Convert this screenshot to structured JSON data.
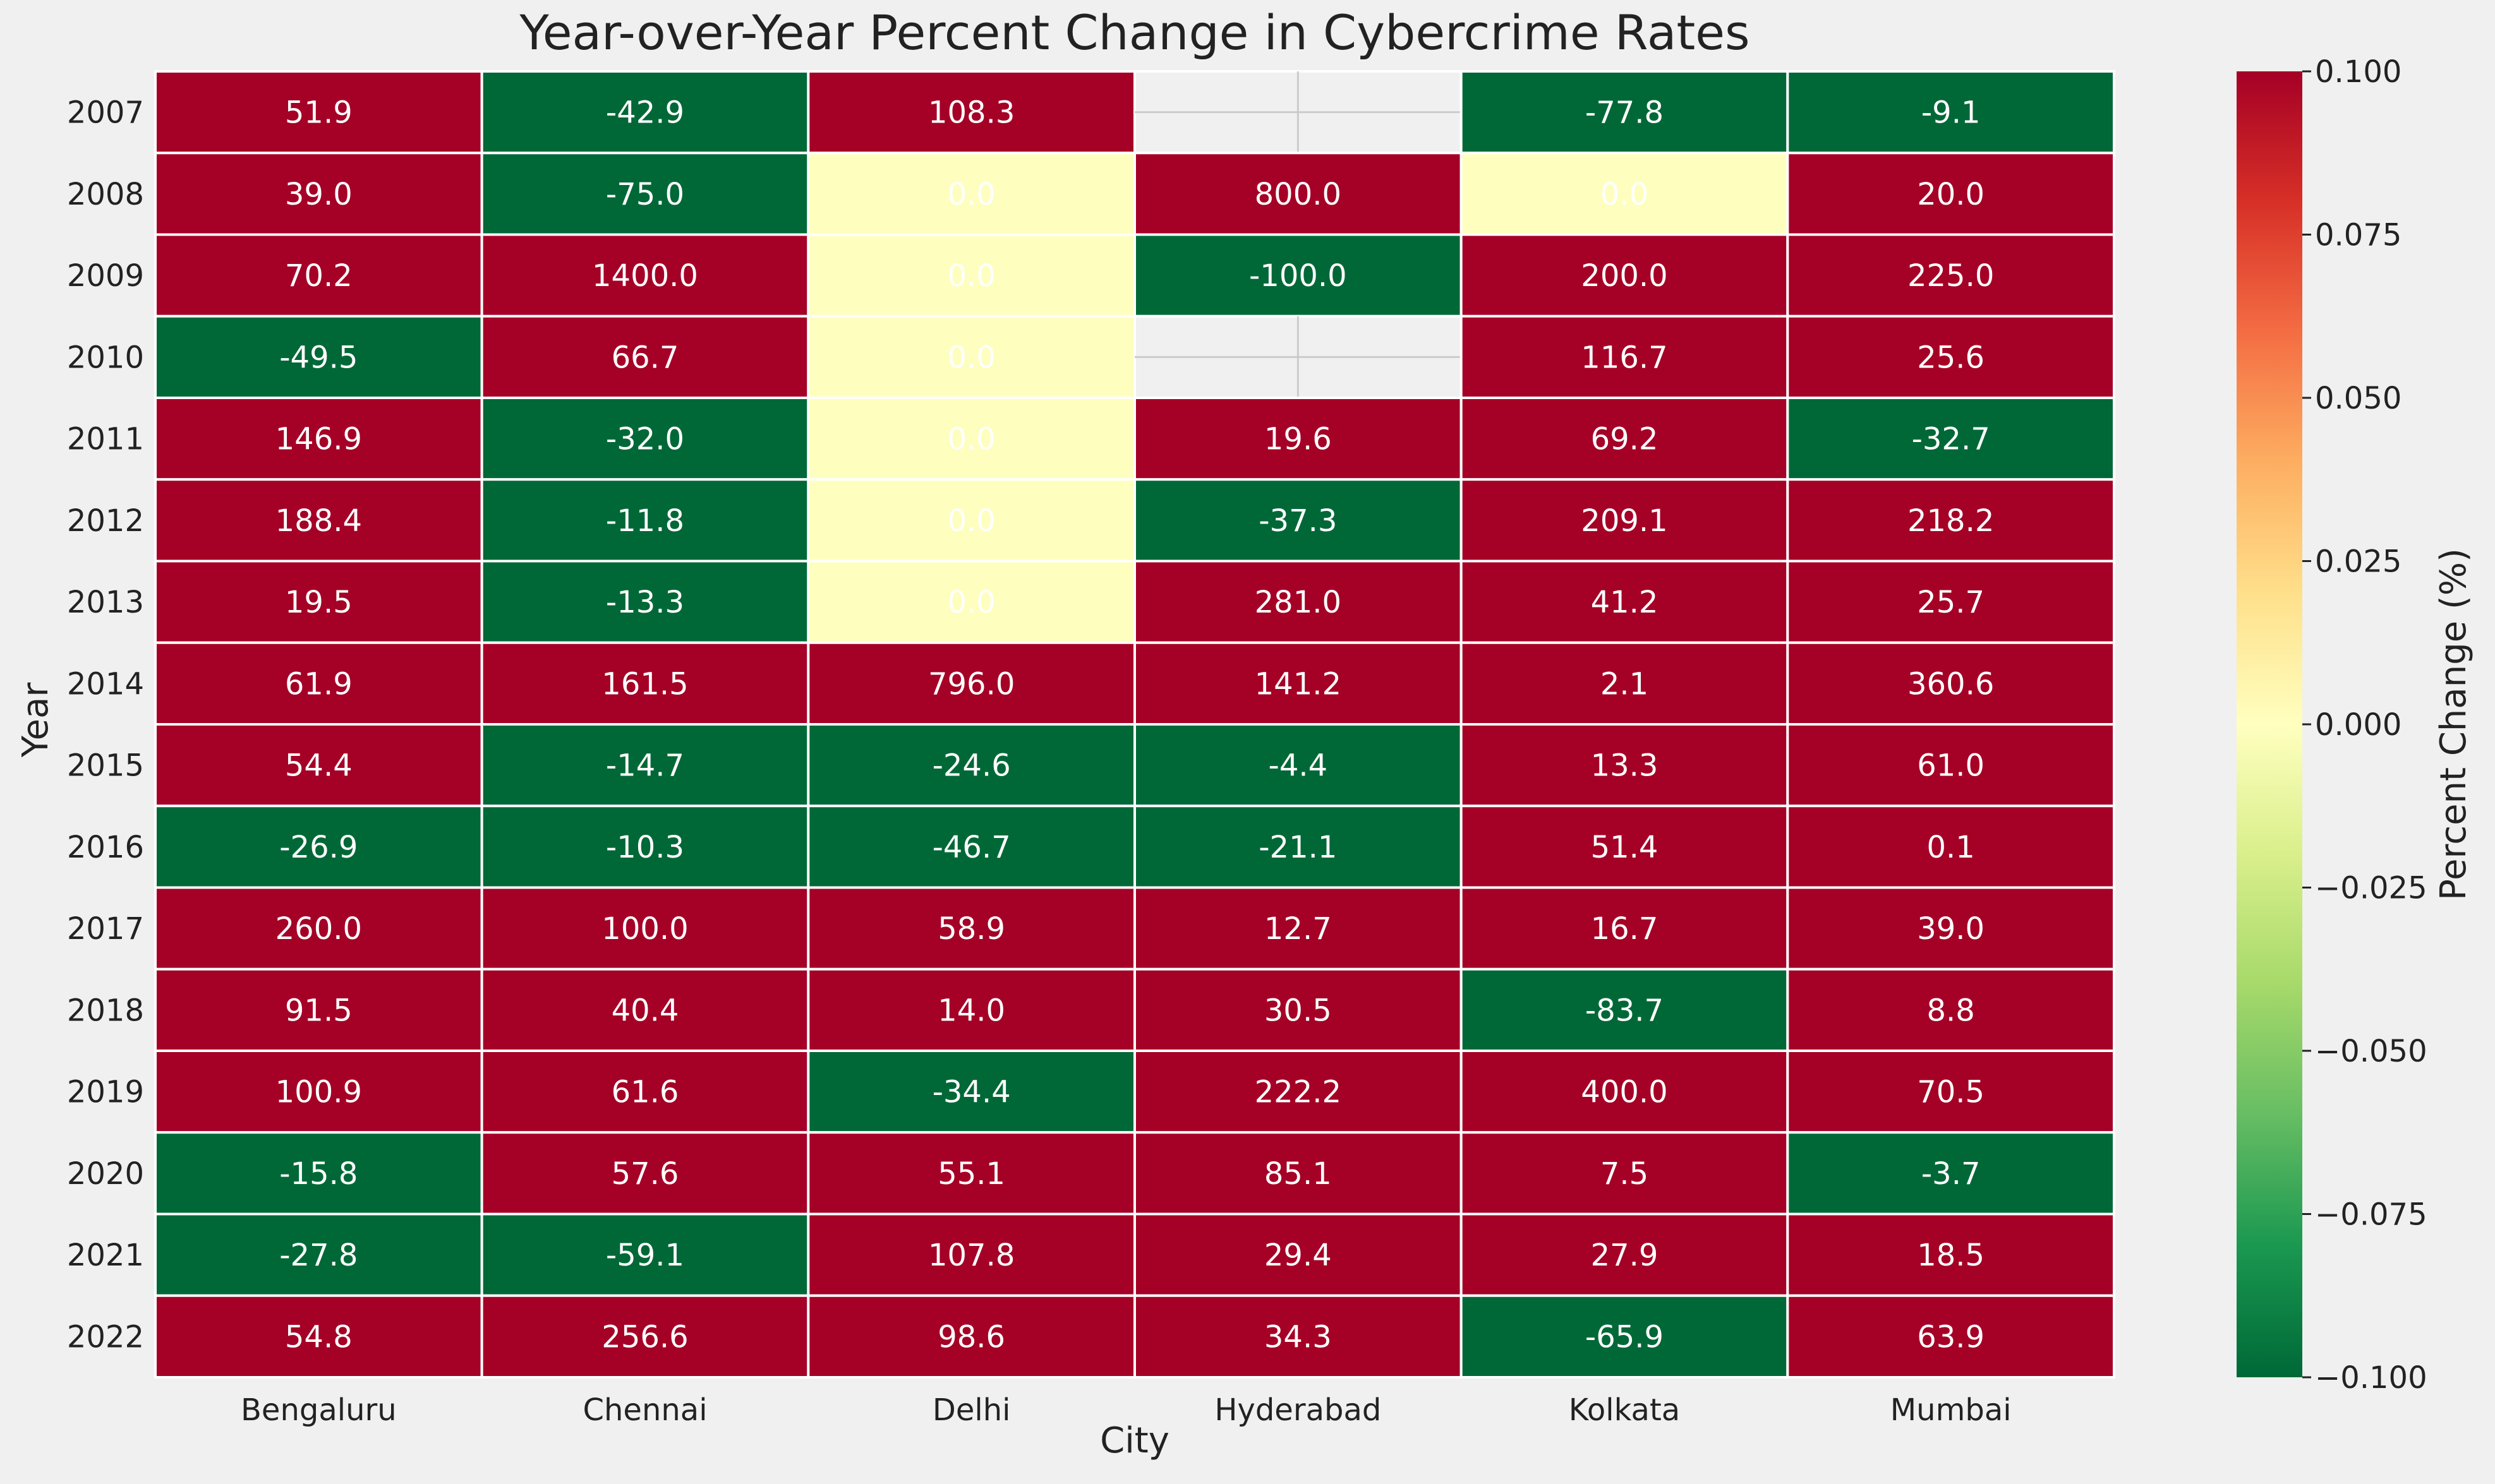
{
  "chart_data": {
    "type": "heatmap",
    "title": "Year-over-Year Percent Change in Cybercrime Rates",
    "xlabel": "City",
    "ylabel": "Year",
    "x_categories": [
      "Bengaluru",
      "Chennai",
      "Delhi",
      "Hyderabad",
      "Kolkata",
      "Mumbai"
    ],
    "y_categories": [
      "2007",
      "2008",
      "2009",
      "2010",
      "2011",
      "2012",
      "2013",
      "2014",
      "2015",
      "2016",
      "2017",
      "2018",
      "2019",
      "2020",
      "2021",
      "2022"
    ],
    "values": [
      [
        51.9,
        -42.9,
        108.3,
        null,
        -77.8,
        -9.1
      ],
      [
        39.0,
        -75.0,
        0.0,
        800.0,
        0.0,
        20.0
      ],
      [
        70.2,
        1400.0,
        0.0,
        -100.0,
        200.0,
        225.0
      ],
      [
        -49.5,
        66.7,
        0.0,
        null,
        116.7,
        25.6
      ],
      [
        146.9,
        -32.0,
        0.0,
        19.6,
        69.2,
        -32.7
      ],
      [
        188.4,
        -11.8,
        0.0,
        -37.3,
        209.1,
        218.2
      ],
      [
        19.5,
        -13.3,
        0.0,
        281.0,
        41.2,
        25.7
      ],
      [
        61.9,
        161.5,
        796.0,
        141.2,
        2.1,
        360.6
      ],
      [
        54.4,
        -14.7,
        -24.6,
        -4.4,
        13.3,
        61.0
      ],
      [
        -26.9,
        -10.3,
        -46.7,
        -21.1,
        51.4,
        0.1
      ],
      [
        260.0,
        100.0,
        58.9,
        12.7,
        16.7,
        39.0
      ],
      [
        91.5,
        40.4,
        14.0,
        30.5,
        -83.7,
        8.8
      ],
      [
        100.9,
        61.6,
        -34.4,
        222.2,
        400.0,
        70.5
      ],
      [
        -15.8,
        57.6,
        55.1,
        85.1,
        7.5,
        -3.7
      ],
      [
        -27.8,
        -59.1,
        107.8,
        29.4,
        27.9,
        18.5
      ],
      [
        54.8,
        256.6,
        98.6,
        34.3,
        -65.9,
        63.9
      ]
    ],
    "colorbar": {
      "label": "Percent Change (%)",
      "min": -0.1,
      "max": 0.1,
      "ticks": [
        "0.100",
        "0.075",
        "0.050",
        "0.025",
        "0.000",
        "−0.025",
        "−0.050",
        "−0.075",
        "−0.100"
      ],
      "colormap": "RdYlGn_r"
    },
    "colors": {
      "positive": "#a50026",
      "negative": "#006837",
      "zero": "#feffbe",
      "missing": "#f0f0f0",
      "text": "#ffffff",
      "background": "#f0f0f0"
    },
    "grid": true
  }
}
